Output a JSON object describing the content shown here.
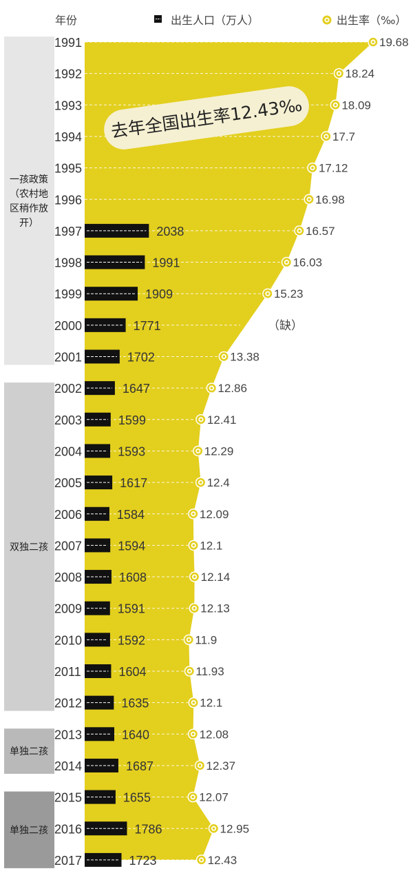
{
  "header": {
    "year_col": "年份",
    "pop_legend": "出生人口（万人）",
    "rate_legend": "出生率（‰）"
  },
  "annotation": "去年全国出生率12.43‰",
  "policies": [
    {
      "label": "一孩政策（农村地区稍作放开）",
      "lines": [
        "一孩政策",
        "（农村地",
        "区稍作放",
        "开）"
      ],
      "from": "1991",
      "to": "2001",
      "color": "#e6e6e6"
    },
    {
      "label": "双独二孩",
      "lines": [
        "双独二孩"
      ],
      "from": "2002",
      "to": "2012",
      "color": "#cfcfcf"
    },
    {
      "label": "单独二孩",
      "lines": [
        "单独二孩"
      ],
      "from": "2013",
      "to": "2014",
      "color": "#b9b9b9"
    },
    {
      "label": "单独二孩",
      "lines": [
        "单独二孩"
      ],
      "from": "2015",
      "to": "2017",
      "color": "#9a9a9a"
    }
  ],
  "missing_label": "（缺）",
  "colors": {
    "area": "#e3cf1e",
    "bar": "#111111",
    "marker": "#e3cf1e",
    "grid": "#ffffff"
  },
  "chart_data": {
    "type": "bar",
    "categories": [
      "1991",
      "1992",
      "1993",
      "1994",
      "1995",
      "1996",
      "1997",
      "1998",
      "1999",
      "2000",
      "2001",
      "2002",
      "2003",
      "2004",
      "2005",
      "2006",
      "2007",
      "2008",
      "2009",
      "2010",
      "2011",
      "2012",
      "2013",
      "2014",
      "2015",
      "2016",
      "2017"
    ],
    "series": [
      {
        "name": "出生人口（万人）",
        "type": "bar",
        "values": [
          null,
          null,
          null,
          null,
          null,
          null,
          2038,
          1991,
          1909,
          1771,
          1702,
          1647,
          1599,
          1593,
          1617,
          1584,
          1594,
          1608,
          1591,
          1592,
          1604,
          1635,
          1640,
          1687,
          1655,
          1786,
          1723
        ]
      },
      {
        "name": "出生率（‰）",
        "type": "area",
        "values": [
          19.68,
          18.24,
          18.09,
          17.7,
          17.12,
          16.98,
          16.57,
          16.03,
          15.23,
          null,
          13.38,
          12.86,
          12.41,
          12.29,
          12.4,
          12.09,
          12.1,
          12.14,
          12.13,
          11.9,
          11.93,
          12.1,
          12.08,
          12.37,
          12.07,
          12.95,
          12.43
        ],
        "labels": [
          "19.68",
          "18.24",
          "18.09",
          "17.7",
          "17.12",
          "16.98",
          "16.57",
          "16.03",
          "15.23",
          "",
          "13.38",
          "12.86",
          "12.41",
          "12.29",
          "12.4",
          "12.09",
          "12.1",
          "12.14",
          "12.13",
          "11.9",
          "11.93",
          "12.1",
          "12.08",
          "12.37",
          "12.07",
          "12.95",
          "12.43"
        ]
      }
    ],
    "orientation": "horizontal"
  }
}
